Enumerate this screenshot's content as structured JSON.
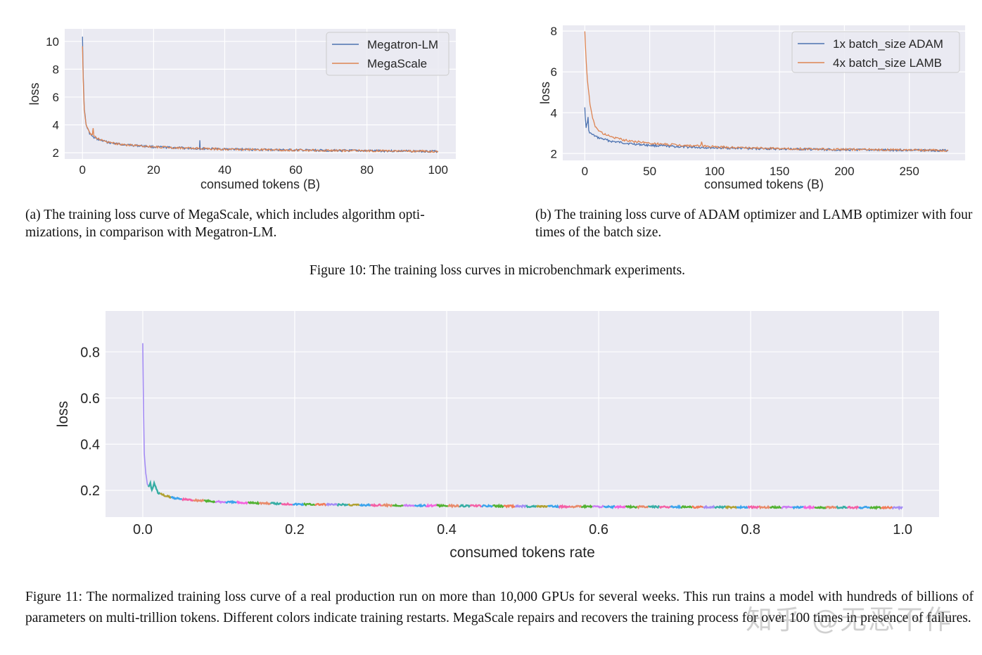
{
  "chart_data": [
    {
      "id": "a",
      "type": "line",
      "xlabel": "consumed tokens (B)",
      "ylabel": "loss",
      "xlim": [
        -5,
        105
      ],
      "ylim": [
        1.55,
        10.9
      ],
      "xticks": [
        0,
        20,
        40,
        60,
        80,
        100
      ],
      "yticks": [
        2,
        4,
        6,
        8,
        10
      ],
      "grid": true,
      "legend_position": "top-right",
      "series": [
        {
          "name": "Megatron-LM",
          "color": "#4c72b0",
          "x": [
            0,
            0.2,
            0.5,
            1,
            2,
            3,
            5,
            8,
            12,
            20,
            30,
            32.9,
            33,
            33.1,
            40,
            50,
            60,
            70,
            80,
            90,
            100
          ],
          "y": [
            10.4,
            7.5,
            5.2,
            4.0,
            3.4,
            3.1,
            2.9,
            2.7,
            2.58,
            2.42,
            2.32,
            2.3,
            2.95,
            2.3,
            2.26,
            2.22,
            2.19,
            2.16,
            2.14,
            2.12,
            2.1
          ]
        },
        {
          "name": "MegaScale",
          "color": "#dd8452",
          "x": [
            0,
            0.2,
            0.5,
            1,
            2,
            2.8,
            3,
            3.2,
            5,
            8,
            12,
            20,
            30,
            40,
            50,
            60,
            70,
            80,
            90,
            100
          ],
          "y": [
            9.6,
            7.3,
            5.1,
            4.0,
            3.4,
            3.3,
            3.8,
            3.2,
            2.92,
            2.7,
            2.58,
            2.42,
            2.32,
            2.26,
            2.22,
            2.19,
            2.16,
            2.14,
            2.12,
            2.1
          ]
        }
      ]
    },
    {
      "id": "b",
      "type": "line",
      "xlabel": "consumed tokens (B)",
      "ylabel": "loss",
      "xlim": [
        -17,
        293
      ],
      "ylim": [
        1.66,
        8.28
      ],
      "xticks": [
        0,
        50,
        100,
        150,
        200,
        250
      ],
      "yticks": [
        2,
        4,
        6,
        8
      ],
      "grid": true,
      "legend_position": "top-right",
      "series": [
        {
          "name": "1x batch_size ADAM",
          "color": "#4c72b0",
          "x": [
            0,
            0.5,
            1,
            2,
            2.5,
            3,
            5,
            10,
            20,
            35,
            50,
            75,
            100,
            150,
            200,
            250,
            280
          ],
          "y": [
            4.3,
            3.6,
            3.3,
            3.5,
            3.8,
            3.1,
            2.95,
            2.78,
            2.6,
            2.48,
            2.4,
            2.32,
            2.28,
            2.22,
            2.18,
            2.16,
            2.15
          ]
        },
        {
          "name": "4x batch_size LAMB",
          "color": "#dd8452",
          "x": [
            0,
            1,
            2,
            4,
            6,
            8,
            10,
            15,
            20,
            30,
            50,
            75,
            89,
            90,
            91,
            100,
            150,
            200,
            250,
            280
          ],
          "y": [
            7.95,
            6.6,
            5.6,
            4.4,
            3.7,
            3.35,
            3.15,
            2.95,
            2.82,
            2.66,
            2.5,
            2.4,
            2.36,
            2.55,
            2.36,
            2.32,
            2.24,
            2.2,
            2.17,
            2.15
          ]
        }
      ]
    },
    {
      "id": "c",
      "type": "line",
      "xlabel": "consumed tokens rate",
      "ylabel": "loss",
      "xlim": [
        -0.049,
        1.048
      ],
      "ylim": [
        0.084,
        0.977
      ],
      "xticks": [
        "0.0",
        "0.2",
        "0.4",
        "0.6",
        "0.8",
        "1.0"
      ],
      "yticks": [
        "0.2",
        "0.4",
        "0.6",
        "0.8"
      ],
      "grid": true,
      "x": [
        0,
        0.001,
        0.002,
        0.004,
        0.006,
        0.008,
        0.01,
        0.012,
        0.015,
        0.02,
        0.03,
        0.05,
        0.1,
        0.2,
        0.3,
        0.4,
        0.5,
        0.6,
        0.7,
        0.8,
        0.9,
        1.0
      ],
      "y": [
        0.84,
        0.55,
        0.36,
        0.27,
        0.23,
        0.215,
        0.23,
        0.2,
        0.23,
        0.19,
        0.175,
        0.162,
        0.15,
        0.14,
        0.136,
        0.133,
        0.131,
        0.129,
        0.128,
        0.127,
        0.126,
        0.125
      ],
      "restart_colors": [
        "#a48cf4",
        "#36ada4",
        "#b0a030",
        "#3ba3ec",
        "#f45fa5",
        "#e88a6a",
        "#50b131",
        "#cc7af4",
        "#3ba3ec",
        "#f561dd",
        "#50b131",
        "#e88a6a",
        "#36ada4",
        "#f45fa5",
        "#3ba3ec",
        "#50b131",
        "#f17b57"
      ]
    }
  ],
  "captions": {
    "sub_a": "(a) The training loss curve of MegaScale, which includes algorithm opti- mizations, in comparison with Megatron-LM.",
    "sub_b": "(b) The training loss curve of ADAM optimizer and LAMB optimizer with four times of the batch size.",
    "fig10": "Figure 10: The training loss curves in microbenchmark experiments.",
    "fig11": "Figure 11: The normalized training loss curve of a real production run on more than 10,000 GPUs for several weeks. This run trains a model with hundreds of billions of parameters on multi-trillion tokens. Different colors indicate training restarts. MegaScale repairs and recovers the training process for over 100 times in presence of failures."
  },
  "watermark": "知乎 @无恶不作"
}
